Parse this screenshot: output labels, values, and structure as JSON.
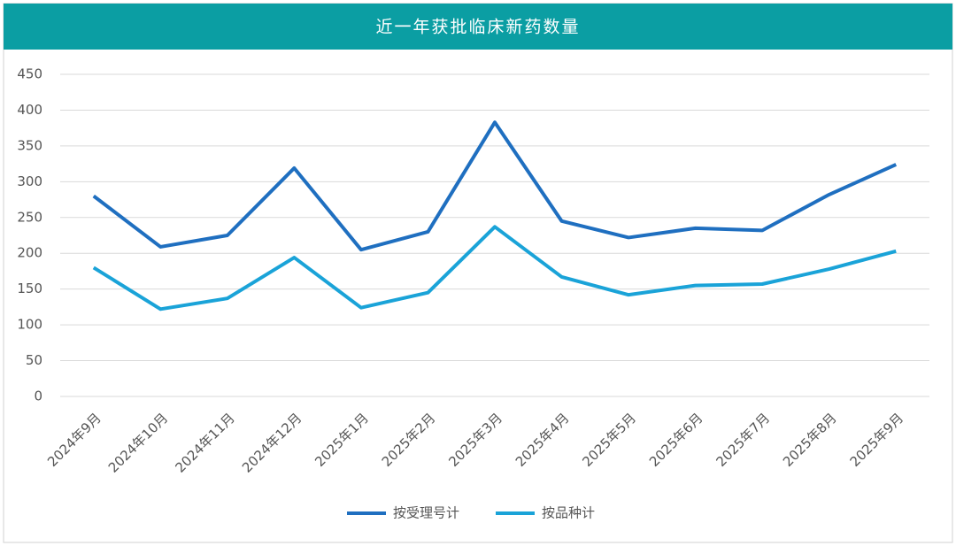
{
  "chart_data": {
    "type": "line",
    "title": "近一年获批临床新药数量",
    "categories": [
      "2024年9月",
      "2024年10月",
      "2024年11月",
      "2024年12月",
      "2025年1月",
      "2025年2月",
      "2025年3月",
      "2025年4月",
      "2025年5月",
      "2025年6月",
      "2025年7月",
      "2025年8月",
      "2025年9月"
    ],
    "series": [
      {
        "name": "按受理号计",
        "color": "#1f6fc0",
        "values": [
          280,
          209,
          225,
          319,
          205,
          230,
          383,
          245,
          222,
          235,
          232,
          282,
          324
        ]
      },
      {
        "name": "按品种计",
        "color": "#1aa3d8",
        "values": [
          180,
          122,
          137,
          194,
          124,
          145,
          237,
          167,
          142,
          155,
          157,
          178,
          203
        ]
      }
    ],
    "ylim": [
      0,
      450
    ],
    "yticks": [
      0,
      50,
      100,
      150,
      200,
      250,
      300,
      350,
      400,
      450
    ],
    "grid": true,
    "legend": "bottom"
  }
}
